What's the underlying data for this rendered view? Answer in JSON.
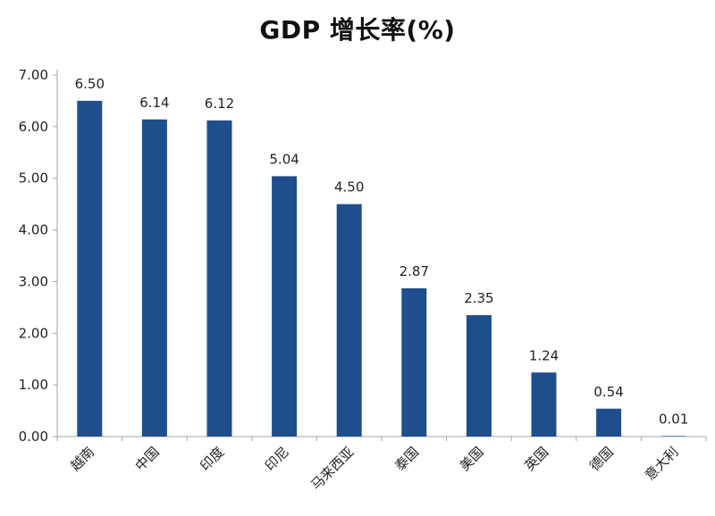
{
  "chart_data": {
    "type": "bar",
    "title": "GDP 增长率(%)",
    "xlabel": "",
    "ylabel": "",
    "categories": [
      "越南",
      "中国",
      "印度",
      "印尼",
      "马来西亚",
      "泰国",
      "美国",
      "英国",
      "德国",
      "意大利"
    ],
    "values": [
      6.5,
      6.14,
      6.12,
      5.04,
      4.5,
      2.87,
      2.35,
      1.24,
      0.54,
      0.01
    ],
    "data_labels": [
      "6.50",
      "6.14",
      "6.12",
      "5.04",
      "4.50",
      "2.87",
      "2.35",
      "1.24",
      "0.54",
      "0.01"
    ],
    "ylim": [
      0,
      7
    ],
    "yticks": [
      "0.00",
      "1.00",
      "2.00",
      "3.00",
      "4.00",
      "5.00",
      "6.00",
      "7.00"
    ],
    "grid": false,
    "legend": "none",
    "bar_color": "#1F4E8C",
    "axis_color": "#a6a6a6",
    "text_color": "#222222"
  }
}
